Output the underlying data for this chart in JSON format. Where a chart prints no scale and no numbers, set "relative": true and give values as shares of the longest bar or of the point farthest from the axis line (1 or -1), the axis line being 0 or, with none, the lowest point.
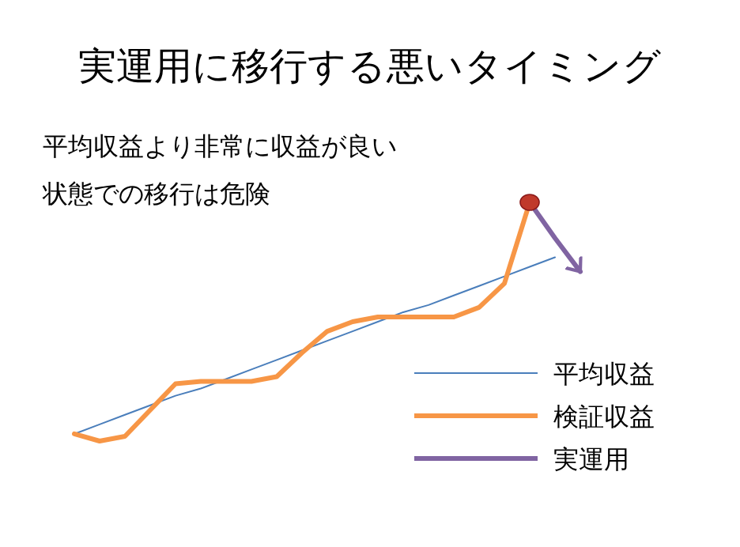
{
  "chart_data": {
    "type": "line",
    "title": "実運用に移行する悪いタイミング",
    "annotations": [
      "平均収益より非常に収益が良い",
      "状態での移行は危険"
    ],
    "relative": true,
    "legend": "bottom right",
    "grid": false,
    "categories": [
      null,
      null,
      null,
      null,
      null,
      null,
      null,
      null,
      null,
      null,
      null,
      null,
      null,
      null,
      null,
      null,
      null,
      null,
      null,
      null,
      null
    ],
    "series": [
      {
        "name": "平均収益",
        "color": "#4a7ebb",
        "values": [
          0.03,
          0.07,
          0.11,
          0.15,
          0.19,
          0.22,
          0.26,
          0.3,
          0.34,
          0.38,
          0.42,
          0.46,
          0.5,
          0.54,
          0.57,
          0.61,
          0.65,
          0.69,
          0.73,
          0.77,
          null
        ]
      },
      {
        "name": "検証収益",
        "color": "#f79646",
        "values": [
          0.03,
          0.0,
          0.02,
          0.13,
          0.24,
          0.25,
          0.25,
          0.25,
          0.27,
          0.37,
          0.46,
          0.5,
          0.52,
          0.52,
          0.52,
          0.52,
          0.56,
          0.66,
          1.0,
          null,
          null
        ]
      },
      {
        "name": "実運用",
        "color": "#8064a2",
        "values": [
          null,
          null,
          null,
          null,
          null,
          null,
          null,
          null,
          null,
          null,
          null,
          null,
          null,
          null,
          null,
          null,
          null,
          null,
          1.0,
          0.85,
          0.71
        ]
      }
    ]
  }
}
